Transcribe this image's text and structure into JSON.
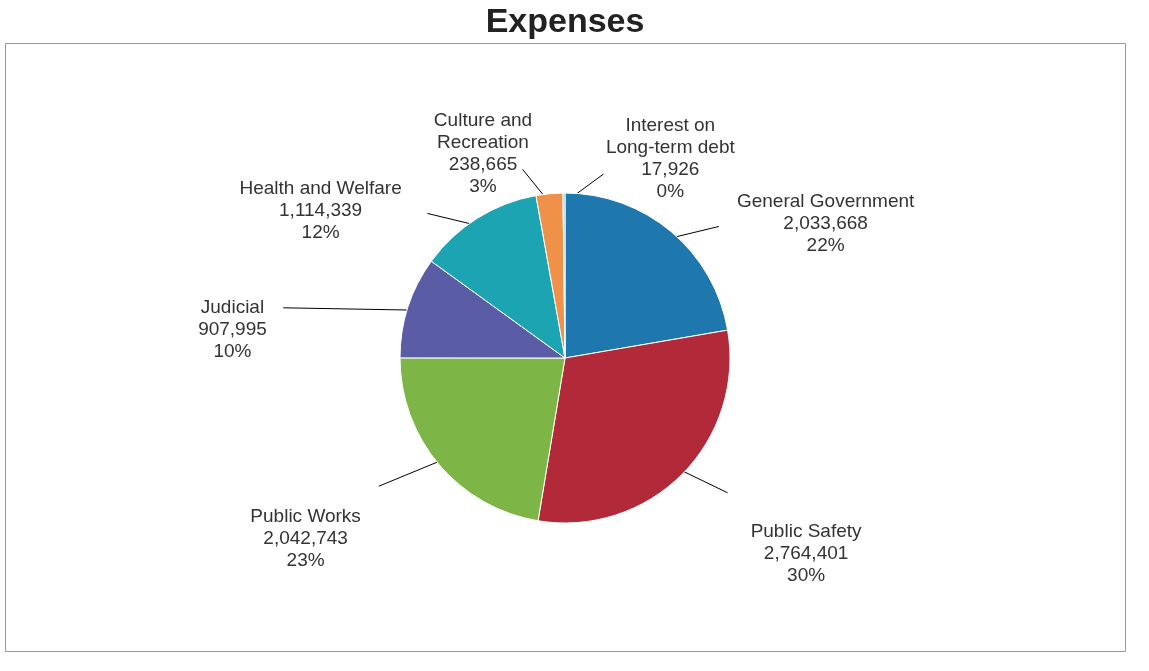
{
  "chart_data": {
    "type": "pie",
    "title": "Expenses",
    "categories": [
      "General Government",
      "Public Safety",
      "Public Works",
      "Judicial",
      "Health and Welfare",
      "Culture and Recreation",
      "Interest on Long-term debt"
    ],
    "values": [
      2033668,
      2764401,
      2042743,
      907995,
      1114339,
      238665,
      17926
    ],
    "colors": [
      "#1f78ad",
      "#b22a3a",
      "#7db646",
      "#5a5ca6",
      "#1ca4b3",
      "#f0914a",
      "#8fc4e8"
    ],
    "value_labels": [
      "2,033,668\n22%",
      "2,764,401\n30%",
      "2,042,743\n23%",
      "907,995\n10%",
      "1,114,339\n12%",
      "238,665\n3%",
      "17,926\n0%"
    ],
    "legend": false
  }
}
